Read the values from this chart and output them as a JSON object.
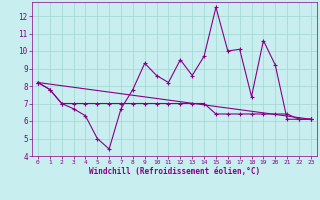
{
  "xlabel": "Windchill (Refroidissement éolien,°C)",
  "background_color": "#c8eef0",
  "grid_color": "#a0d8d0",
  "line_color": "#880088",
  "xlim": [
    -0.5,
    23.5
  ],
  "ylim": [
    4,
    12.8
  ],
  "yticks": [
    4,
    5,
    6,
    7,
    8,
    9,
    10,
    11,
    12
  ],
  "xticks": [
    0,
    1,
    2,
    3,
    4,
    5,
    6,
    7,
    8,
    9,
    10,
    11,
    12,
    13,
    14,
    15,
    16,
    17,
    18,
    19,
    20,
    21,
    22,
    23
  ],
  "series1_x": [
    0,
    1,
    2,
    3,
    4,
    5,
    6,
    7,
    8,
    9,
    10,
    11,
    12,
    13,
    14,
    15,
    16,
    17,
    18,
    19,
    20,
    21,
    22,
    23
  ],
  "series1_y": [
    8.2,
    7.8,
    7.0,
    6.7,
    6.3,
    5.0,
    4.4,
    6.7,
    7.8,
    9.3,
    8.6,
    8.2,
    9.5,
    8.6,
    9.7,
    12.5,
    10.0,
    10.1,
    7.4,
    10.6,
    9.2,
    6.1,
    6.1,
    6.1
  ],
  "series2_x": [
    0,
    1,
    2,
    3,
    4,
    5,
    6,
    7,
    8,
    9,
    10,
    11,
    12,
    13,
    14,
    15,
    16,
    17,
    18,
    19,
    20,
    21,
    22,
    23
  ],
  "series2_y": [
    8.2,
    7.8,
    7.0,
    7.0,
    7.0,
    7.0,
    7.0,
    7.0,
    7.0,
    7.0,
    7.0,
    7.0,
    7.0,
    7.0,
    7.0,
    6.4,
    6.4,
    6.4,
    6.4,
    6.4,
    6.4,
    6.4,
    6.1,
    6.1
  ],
  "series3_x": [
    0,
    23
  ],
  "series3_y": [
    8.2,
    6.1
  ]
}
